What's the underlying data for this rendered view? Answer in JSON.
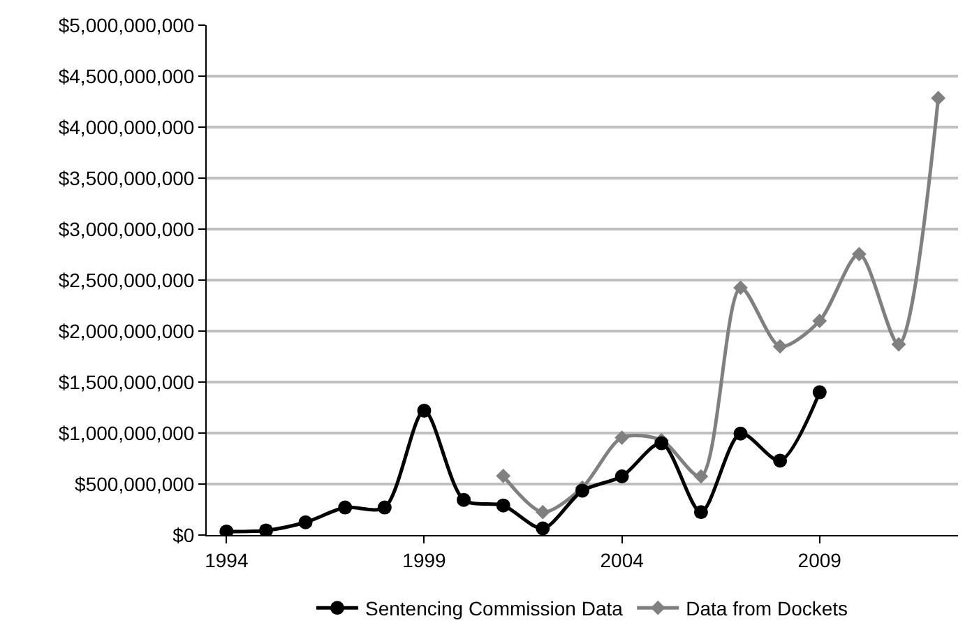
{
  "chart_data": {
    "type": "line",
    "categories": [
      "1994",
      null,
      null,
      null,
      null,
      "1999",
      null,
      null,
      null,
      null,
      "2004",
      null,
      null,
      null,
      null,
      "2009",
      null,
      null,
      null
    ],
    "series": [
      {
        "name": "Sentencing Commission Data",
        "color": "#000000",
        "marker": "circle",
        "values": [
          35000000,
          45000000,
          125000000,
          270000000,
          270000000,
          1220000000,
          345000000,
          290000000,
          65000000,
          435000000,
          575000000,
          900000000,
          225000000,
          995000000,
          730000000,
          1400000000,
          null,
          null,
          null
        ]
      },
      {
        "name": "Data from Dockets",
        "color": "#808080",
        "marker": "diamond",
        "values": [
          null,
          null,
          null,
          null,
          null,
          null,
          null,
          580000000,
          225000000,
          465000000,
          955000000,
          930000000,
          575000000,
          2425000000,
          1850000000,
          2100000000,
          2755000000,
          1870000000,
          4285000000
        ]
      }
    ],
    "ylim": [
      0,
      5000000000
    ],
    "yticks": [
      {
        "value": 0,
        "label": "$0"
      },
      {
        "value": 500000000,
        "label": "$500,000,000"
      },
      {
        "value": 1000000000,
        "label": "$1,000,000,000"
      },
      {
        "value": 1500000000,
        "label": "$1,500,000,000"
      },
      {
        "value": 2000000000,
        "label": "$2,000,000,000"
      },
      {
        "value": 2500000000,
        "label": "$2,500,000,000"
      },
      {
        "value": 3000000000,
        "label": "$3,000,000,000"
      },
      {
        "value": 3500000000,
        "label": "$3,500,000,000"
      },
      {
        "value": 4000000000,
        "label": "$4,000,000,000"
      },
      {
        "value": 4500000000,
        "label": "$4,500,000,000"
      },
      {
        "value": 5000000000,
        "label": "$5,000,000,000"
      }
    ],
    "grid": "y",
    "legend": "bottom",
    "line_style": "solid"
  }
}
